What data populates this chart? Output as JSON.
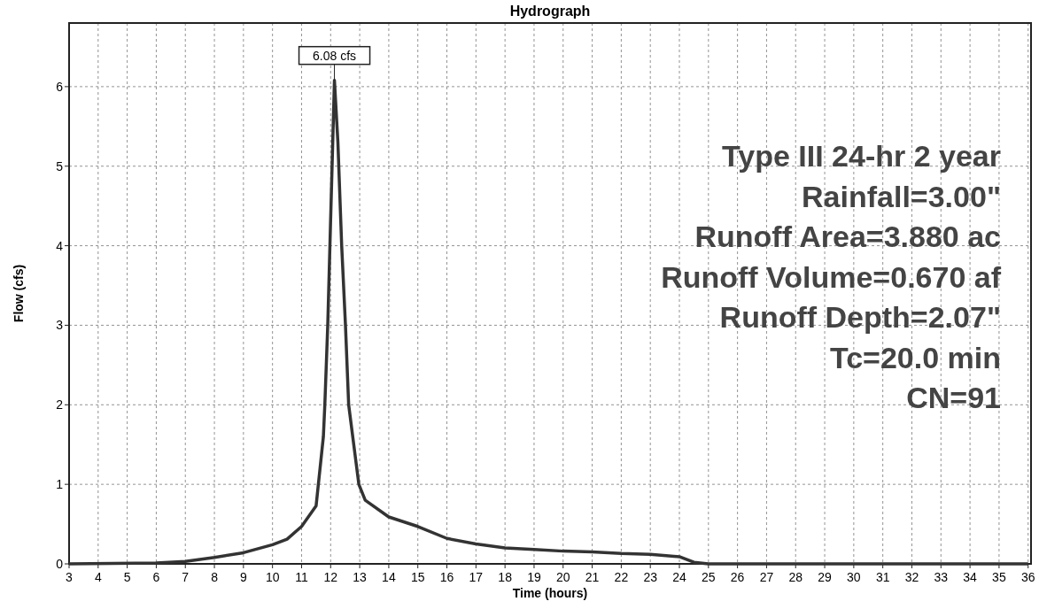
{
  "chart_data": {
    "type": "line",
    "title": "Hydrograph",
    "xlabel": "Time  (hours)",
    "ylabel": "Flow  (cfs)",
    "x": [
      3,
      6,
      7,
      8,
      9,
      10,
      10.5,
      11,
      11.5,
      11.75,
      11.8,
      11.9,
      12.05,
      12.13,
      12.25,
      12.38,
      12.51,
      12.62,
      12.97,
      13.19,
      14,
      15,
      16,
      17,
      18,
      19,
      20,
      21,
      22,
      23,
      24,
      24.5,
      25,
      36
    ],
    "series": [
      {
        "color": "#333333",
        "values": [
          0,
          0.01,
          0.03,
          0.08,
          0.14,
          0.24,
          0.31,
          0.47,
          0.73,
          1.6,
          2,
          3,
          5,
          6.08,
          5.3,
          4,
          3,
          2,
          1,
          0.8,
          0.59,
          0.47,
          0.32,
          0.25,
          0.2,
          0.18,
          0.16,
          0.15,
          0.13,
          0.12,
          0.09,
          0.02,
          0,
          0
        ]
      }
    ],
    "xlim": [
      3,
      36.1
    ],
    "xticks": [
      3,
      4,
      5,
      6,
      7,
      8,
      9,
      10,
      11,
      12,
      13,
      14,
      15,
      16,
      17,
      18,
      19,
      20,
      21,
      22,
      23,
      24,
      25,
      26,
      27,
      28,
      29,
      30,
      31,
      32,
      33,
      34,
      35,
      36
    ],
    "ylim": [
      0,
      6.8
    ],
    "yticks": [
      0,
      1,
      2,
      3,
      4,
      5,
      6
    ],
    "grid": true,
    "marker": "none",
    "line_style": "solid",
    "annotations": [
      {
        "text": "6.08 cfs",
        "x": 12.13,
        "y": 6.08
      },
      "Type III 24-hr 2 year",
      "Rainfall=3.00\"",
      "Runoff Area=3.880 ac",
      "Runoff Volume=0.670 af",
      "Runoff Depth=2.07\"",
      "Tc=20.0 min",
      "CN=91"
    ]
  }
}
